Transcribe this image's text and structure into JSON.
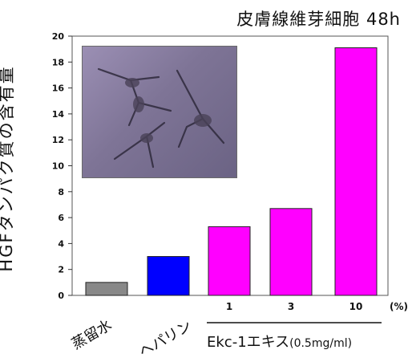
{
  "chart_data": {
    "type": "bar",
    "title": "皮膚線維芽細胞 48h",
    "ylabel": "HGFタンパク質の含有量",
    "ylim": [
      0,
      20
    ],
    "yticks": [
      0,
      2,
      4,
      6,
      8,
      10,
      12,
      14,
      16,
      18,
      20
    ],
    "categories": [
      "蒸留水",
      "ヘパリン",
      "1",
      "3",
      "10"
    ],
    "values": [
      1,
      3,
      5.3,
      6.7,
      19.1
    ],
    "bar_colors": [
      "#888888",
      "#0000ff",
      "#ff00ff",
      "#ff00ff",
      "#ff00ff"
    ],
    "x_unit": "(%)",
    "group_label": "Ekc-1エキス",
    "group_label_unit": "(0.5mg/ml)",
    "inset_image": "fibroblast-micrograph"
  }
}
